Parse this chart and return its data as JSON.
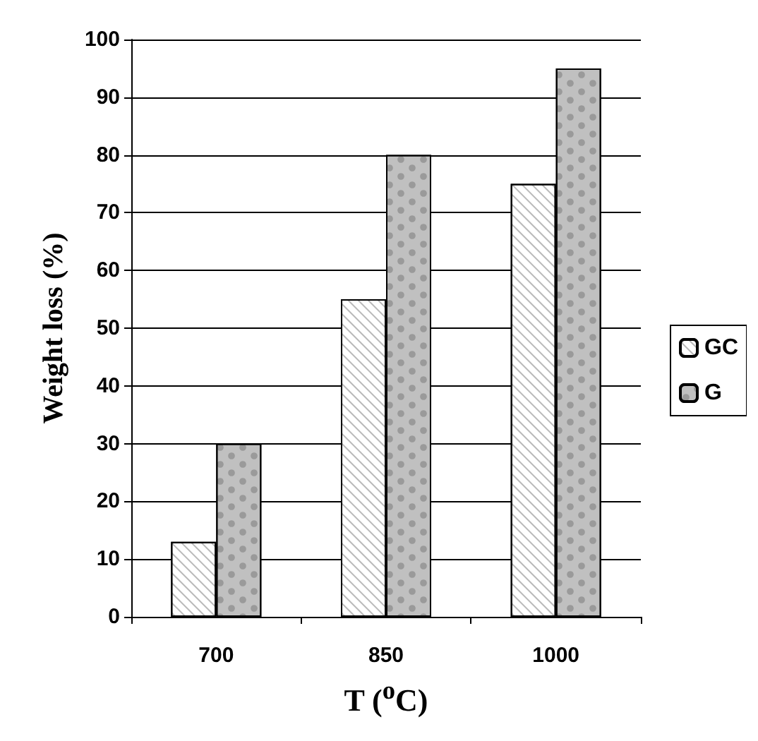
{
  "chart_data": {
    "type": "bar",
    "xlabel": "T ($^{o}$C)",
    "ylabel": "Weight loss (%)",
    "categories": [
      "700",
      "850",
      "1000"
    ],
    "series": [
      {
        "name": "GC",
        "color": "#ffffff",
        "values": [
          13,
          55,
          75
        ]
      },
      {
        "name": "G",
        "color": "#c0c0c0",
        "values": [
          30,
          80,
          95
        ]
      }
    ],
    "ylim": [
      0,
      100
    ],
    "yticks": [
      0,
      10,
      20,
      30,
      40,
      50,
      60,
      70,
      80,
      90,
      100
    ],
    "grid": "y",
    "legend": "right"
  }
}
